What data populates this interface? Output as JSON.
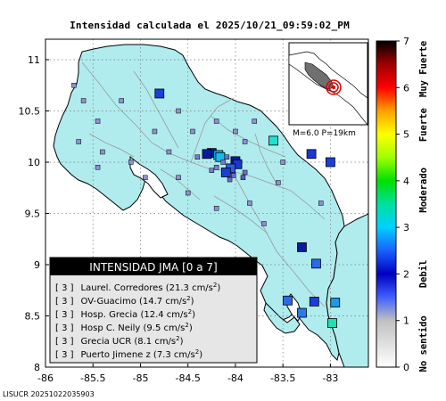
{
  "title": "Intensidad calculada el 2025/10/21_09:59:02_PM",
  "footer": "LISUCR 20251022035903",
  "colors": {
    "land": "#b0ecee",
    "ocean": "#ffffff",
    "border": "#000000",
    "roads": "#9a9a9a",
    "legend_header_bg": "#000000",
    "legend_bg": "#e6e6e6"
  },
  "map": {
    "lon_range": [
      -86,
      -82.6
    ],
    "lat_range": [
      8,
      11.2
    ],
    "x_ticks": [
      {
        "value": -86,
        "label": "-86"
      },
      {
        "value": -85.5,
        "label": "-85.5"
      },
      {
        "value": -85,
        "label": "-85"
      },
      {
        "value": -84.5,
        "label": "-84.5"
      },
      {
        "value": -84,
        "label": "-84"
      },
      {
        "value": -83.5,
        "label": "-83.5"
      },
      {
        "value": -83,
        "label": "-83"
      }
    ],
    "y_ticks": [
      {
        "value": 8,
        "label": "8"
      },
      {
        "value": 8.5,
        "label": "8.5"
      },
      {
        "value": 9,
        "label": "9"
      },
      {
        "value": 9.5,
        "label": "9.5"
      },
      {
        "value": 10,
        "label": "10"
      },
      {
        "value": 10.5,
        "label": "10.5"
      },
      {
        "value": 11,
        "label": "11"
      }
    ],
    "grid": "dotted"
  },
  "stations": [
    {
      "lon": -84.8,
      "lat": 10.67,
      "color": "#1a3fd6",
      "size": "large"
    },
    {
      "lon": -84.25,
      "lat": 10.09,
      "color": "#0a1a9c",
      "size": "large"
    },
    {
      "lon": -84.18,
      "lat": 10.07,
      "color": "#00c8f0",
      "size": "large"
    },
    {
      "lon": -84.16,
      "lat": 10.05,
      "color": "#20b8e8",
      "size": "large"
    },
    {
      "lon": -84.0,
      "lat": 10.01,
      "color": "#0818a8",
      "size": "large"
    },
    {
      "lon": -83.98,
      "lat": 9.98,
      "color": "#1838d0",
      "size": "large"
    },
    {
      "lon": -84.05,
      "lat": 9.94,
      "color": "#2a5ae8",
      "size": "large"
    },
    {
      "lon": -84.1,
      "lat": 9.9,
      "color": "#1a3fd6",
      "size": "large"
    },
    {
      "lon": -83.6,
      "lat": 10.21,
      "color": "#20e0d0",
      "size": "large"
    },
    {
      "lon": -83.2,
      "lat": 10.08,
      "color": "#1838d0",
      "size": "large"
    },
    {
      "lon": -83.0,
      "lat": 10.0,
      "color": "#1a3fd6",
      "size": "large"
    },
    {
      "lon": -83.3,
      "lat": 9.17,
      "color": "#0a1a9c",
      "size": "large"
    },
    {
      "lon": -83.15,
      "lat": 9.01,
      "color": "#2a6ae8",
      "size": "large"
    },
    {
      "lon": -83.45,
      "lat": 8.65,
      "color": "#2a6ae8",
      "size": "large"
    },
    {
      "lon": -83.3,
      "lat": 8.53,
      "color": "#2a7ae8",
      "size": "large"
    },
    {
      "lon": -83.17,
      "lat": 8.64,
      "color": "#1a3fd6",
      "size": "large"
    },
    {
      "lon": -82.95,
      "lat": 8.63,
      "color": "#1a9ae8",
      "size": "large"
    },
    {
      "lon": -82.98,
      "lat": 8.43,
      "color": "#20e0b0",
      "size": "large"
    },
    {
      "lon": -84.3,
      "lat": 10.08,
      "color": "#0a1a9c",
      "size": "large"
    },
    {
      "lon": -84.09,
      "lat": 10.05,
      "color": "#6a70c8",
      "size": "small"
    },
    {
      "lon": -84.13,
      "lat": 10.0,
      "color": "#7a7ad0",
      "size": "small"
    },
    {
      "lon": -84.02,
      "lat": 9.87,
      "color": "#6a6ac8",
      "size": "small"
    },
    {
      "lon": -84.2,
      "lat": 9.95,
      "color": "#8080d0",
      "size": "small"
    },
    {
      "lon": -83.9,
      "lat": 9.9,
      "color": "#7070c8",
      "size": "small"
    },
    {
      "lon": -84.4,
      "lat": 10.05,
      "color": "#7a7ad0",
      "size": "small"
    },
    {
      "lon": -83.92,
      "lat": 9.85,
      "color": "#5a5ac0",
      "size": "small"
    },
    {
      "lon": -84.25,
      "lat": 9.92,
      "color": "#7a7ad0",
      "size": "small"
    },
    {
      "lon": -84.06,
      "lat": 9.83,
      "color": "#6a6ac8",
      "size": "small"
    },
    {
      "lon": -85.2,
      "lat": 10.6,
      "color": "#9090d0",
      "size": "small"
    },
    {
      "lon": -85.45,
      "lat": 10.4,
      "color": "#9090d0",
      "size": "small"
    },
    {
      "lon": -85.6,
      "lat": 10.6,
      "color": "#9090d0",
      "size": "small"
    },
    {
      "lon": -85.65,
      "lat": 10.2,
      "color": "#9090d0",
      "size": "small"
    },
    {
      "lon": -85.4,
      "lat": 10.1,
      "color": "#9090d0",
      "size": "small"
    },
    {
      "lon": -85.45,
      "lat": 9.95,
      "color": "#9090d0",
      "size": "small"
    },
    {
      "lon": -85.7,
      "lat": 10.75,
      "color": "#9090d0",
      "size": "small"
    },
    {
      "lon": -84.6,
      "lat": 10.5,
      "color": "#9090d0",
      "size": "small"
    },
    {
      "lon": -84.45,
      "lat": 10.3,
      "color": "#9090d0",
      "size": "small"
    },
    {
      "lon": -84.2,
      "lat": 10.4,
      "color": "#9090d0",
      "size": "small"
    },
    {
      "lon": -83.8,
      "lat": 10.4,
      "color": "#9090d0",
      "size": "small"
    },
    {
      "lon": -83.9,
      "lat": 10.2,
      "color": "#9090d0",
      "size": "small"
    },
    {
      "lon": -84.7,
      "lat": 10.1,
      "color": "#9090d0",
      "size": "small"
    },
    {
      "lon": -84.6,
      "lat": 9.85,
      "color": "#9090d0",
      "size": "small"
    },
    {
      "lon": -84.5,
      "lat": 9.7,
      "color": "#9090d0",
      "size": "small"
    },
    {
      "lon": -84.2,
      "lat": 9.55,
      "color": "#9090d0",
      "size": "small"
    },
    {
      "lon": -83.85,
      "lat": 9.6,
      "color": "#9090d0",
      "size": "small"
    },
    {
      "lon": -83.7,
      "lat": 9.4,
      "color": "#9090d0",
      "size": "small"
    },
    {
      "lon": -83.55,
      "lat": 9.8,
      "color": "#9090d0",
      "size": "small"
    },
    {
      "lon": -83.5,
      "lat": 10.0,
      "color": "#9090d0",
      "size": "small"
    },
    {
      "lon": -83.1,
      "lat": 9.6,
      "color": "#9090d0",
      "size": "small"
    },
    {
      "lon": -84.95,
      "lat": 9.85,
      "color": "#9090d0",
      "size": "small"
    },
    {
      "lon": -85.1,
      "lat": 10.0,
      "color": "#9090d0",
      "size": "small"
    },
    {
      "lon": -84.0,
      "lat": 10.3,
      "color": "#9090d0",
      "size": "small"
    },
    {
      "lon": -84.85,
      "lat": 10.3,
      "color": "#9090d0",
      "size": "small"
    }
  ],
  "colorbar": {
    "min": 0,
    "max": 7,
    "ticks": [
      {
        "value": 0,
        "label": "0"
      },
      {
        "value": 1,
        "label": "1"
      },
      {
        "value": 2,
        "label": "2"
      },
      {
        "value": 3,
        "label": "3"
      },
      {
        "value": 4,
        "label": "4"
      },
      {
        "value": 5,
        "label": "5"
      },
      {
        "value": 6,
        "label": "6"
      },
      {
        "value": 7,
        "label": "7"
      }
    ],
    "categories": [
      {
        "label": "No sentido",
        "from": 0,
        "to": 1
      },
      {
        "label": "Debil",
        "from": 1,
        "to": 3
      },
      {
        "label": "Moderado",
        "from": 3,
        "to": 4.6
      },
      {
        "label": "Fuerte",
        "from": 4.6,
        "to": 5.8
      },
      {
        "label": "Muy Fuerte",
        "from": 5.8,
        "to": 7
      }
    ],
    "stops": [
      {
        "value": 0,
        "color": "#ffffff"
      },
      {
        "value": 1,
        "color": "#c0c0c0"
      },
      {
        "value": 1.5,
        "color": "#4060ff"
      },
      {
        "value": 2,
        "color": "#0000c0"
      },
      {
        "value": 2.5,
        "color": "#1a60ff"
      },
      {
        "value": 3,
        "color": "#00d0ff"
      },
      {
        "value": 3.5,
        "color": "#00e0a0"
      },
      {
        "value": 4,
        "color": "#00e000"
      },
      {
        "value": 4.5,
        "color": "#a0ff00"
      },
      {
        "value": 5,
        "color": "#ffff00"
      },
      {
        "value": 5.5,
        "color": "#ffa000"
      },
      {
        "value": 6,
        "color": "#ff0000"
      },
      {
        "value": 6.5,
        "color": "#a00000"
      },
      {
        "value": 7,
        "color": "#000000"
      }
    ]
  },
  "legend": {
    "title": "INTENSIDAD JMA [0 a 7]",
    "rows": [
      {
        "level": "[ 3 ]",
        "text": "Laurel. Corredores (21.3 cm/s",
        "sup": "2",
        "close": ")"
      },
      {
        "level": "[ 3 ]",
        "text": "OV-Guacimo (14.7 cm/s",
        "sup": "2",
        "close": ")"
      },
      {
        "level": "[ 3 ]",
        "text": "Hosp. Grecia (12.4 cm/s",
        "sup": "2",
        "close": ")"
      },
      {
        "level": "[ 3 ]",
        "text": "Hosp C. Neily (9.5 cm/s",
        "sup": "2",
        "close": ")"
      },
      {
        "level": "[ 3 ]",
        "text": "Grecia UCR (8.1 cm/s",
        "sup": "2",
        "close": ")"
      },
      {
        "level": "[ 3 ]",
        "text": "Puerto Jimene z (7.3 cm/s",
        "sup": "2",
        "close": ")"
      }
    ]
  },
  "inset": {
    "label": "M=6.0 P=19km",
    "epicenter_ring_color": "#e00000"
  }
}
